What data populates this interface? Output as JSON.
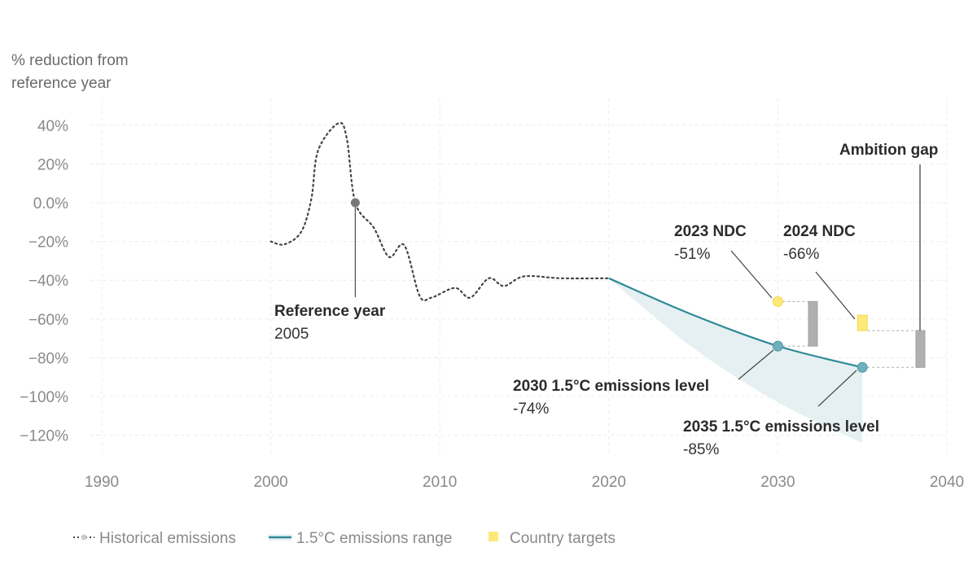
{
  "chart_data": {
    "type": "line",
    "ylabel_lines": [
      "% reduction from",
      "reference year"
    ],
    "xlim": [
      1990,
      2040
    ],
    "ylim": [
      -130,
      45
    ],
    "x_ticks": [
      1990,
      2000,
      2010,
      2020,
      2030,
      2040
    ],
    "y_ticks": [
      40,
      20,
      0,
      -20,
      -40,
      -60,
      -80,
      -100,
      -120
    ],
    "y_tick_labels": [
      "40%",
      "20%",
      "0.0%",
      "−20%",
      "−40%",
      "−60%",
      "−80%",
      "−100%",
      "−120%"
    ],
    "grid": true,
    "colors": {
      "historical": "#444444",
      "pathway": "#2e8a99",
      "range_fill": "#e6f0f2",
      "target": "#fde97a",
      "gap": "#b0b0b0",
      "ref_point": "#777777",
      "level_point": "#6fb0bd"
    },
    "series": [
      {
        "name": "Historical emissions",
        "style": "dotted",
        "x": [
          2000,
          2000.8,
          2001.8,
          2002.4,
          2002.8,
          2004,
          2004.5,
          2005,
          2006.1,
          2007,
          2007.9,
          2008.8,
          2009.5,
          2010.9,
          2011.8,
          2012.9,
          2013.8,
          2015,
          2017.2,
          2020
        ],
        "y": [
          -20,
          -21.5,
          -15,
          2,
          27,
          41,
          33,
          0,
          -13,
          -28,
          -22,
          -48,
          -49,
          -44,
          -49,
          -39,
          -43,
          -38,
          -39,
          -39
        ]
      },
      {
        "name": "1.5°C emissions range",
        "style": "line+band",
        "x": [
          2020,
          2025,
          2030,
          2035
        ],
        "y": [
          -39,
          -58,
          -74,
          -85
        ],
        "lower": [
          -39,
          -75,
          -103,
          -124
        ]
      }
    ],
    "targets": [
      {
        "year": 2030,
        "value": -51,
        "shape": "circle"
      },
      {
        "year": 2035,
        "value": -66,
        "shape": "square"
      }
    ],
    "gaps": [
      {
        "from": -51,
        "to": -74
      },
      {
        "from": -66,
        "to": -85
      }
    ],
    "reference_point": {
      "year": 2005,
      "value": 0
    },
    "annotations": {
      "reference": {
        "title": "Reference year",
        "value": "2005"
      },
      "ndc2023": {
        "title": "2023 NDC",
        "value": "-51%"
      },
      "ndc2024": {
        "title": "2024 NDC",
        "value": "-66%"
      },
      "level2030": {
        "title": "2030 1.5°C emissions level",
        "value": "-74%"
      },
      "level2035": {
        "title": "2035 1.5°C emissions level",
        "value": "-85%"
      },
      "gap": {
        "title": "Ambition gap"
      }
    },
    "legend": {
      "placement": "bottom-left",
      "items": [
        "Historical emissions",
        "1.5°C emissions range",
        "Country targets"
      ]
    }
  }
}
